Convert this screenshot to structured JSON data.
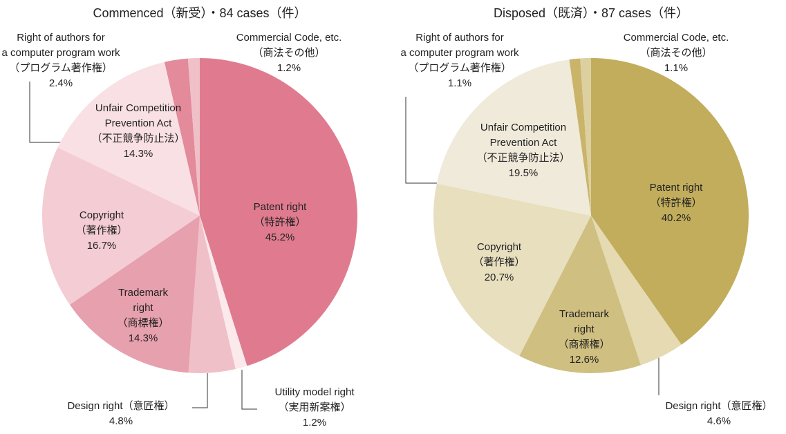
{
  "chart_data": [
    {
      "type": "pie",
      "title": "Commenced（新受）・84 cases（件）",
      "categories": [
        [
          "Patent right",
          "（特許権）"
        ],
        [
          "Utility model right",
          "（実用新案権）"
        ],
        [
          "Design right（意匠権）"
        ],
        [
          "Trademark",
          "right",
          "（商標権）"
        ],
        [
          "Copyright",
          "（著作権）"
        ],
        [
          "Unfair Competition",
          "Prevention Act",
          "（不正競争防止法）"
        ],
        [
          "Right of authors for",
          "a computer program work",
          "（プログラム著作権）"
        ],
        [
          "Commercial Code, etc.",
          "（商法その他）"
        ]
      ],
      "values": [
        45.2,
        1.2,
        4.8,
        14.3,
        16.7,
        14.3,
        2.4,
        1.2
      ],
      "value_labels": [
        "45.2%",
        "1.2%",
        "4.8%",
        "14.3%",
        "16.7%",
        "14.3%",
        "2.4%",
        "1.2%"
      ],
      "colors": [
        "#e07b8f",
        "#fbe9ec",
        "#f0c0c8",
        "#e7a0ad",
        "#f4ccd3",
        "#f9e0e4",
        "#e38a9b",
        "#f0c0c8"
      ]
    },
    {
      "type": "pie",
      "title": "Disposed（既済）・87 cases（件）",
      "categories": [
        [
          "Patent right",
          "（特許権）"
        ],
        [
          "Design right（意匠権）"
        ],
        [
          "Trademark",
          "right",
          "（商標権）"
        ],
        [
          "Copyright",
          "（著作権）"
        ],
        [
          "Unfair Competition",
          "Prevention Act",
          "（不正競争防止法）"
        ],
        [
          "Right of authors for",
          "a computer program work",
          "（プログラム著作権）"
        ],
        [
          "Commercial Code, etc.",
          "（商法その他）"
        ]
      ],
      "values": [
        40.2,
        4.6,
        12.6,
        20.7,
        19.5,
        1.1,
        1.1
      ],
      "value_labels": [
        "40.2%",
        "4.6%",
        "12.6%",
        "20.7%",
        "19.5%",
        "1.1%",
        "1.1%"
      ],
      "colors": [
        "#c2ad5c",
        "#e6dab2",
        "#cfbf80",
        "#e8dfbf",
        "#f0eada",
        "#c9b46a",
        "#ddd0a0"
      ]
    }
  ]
}
